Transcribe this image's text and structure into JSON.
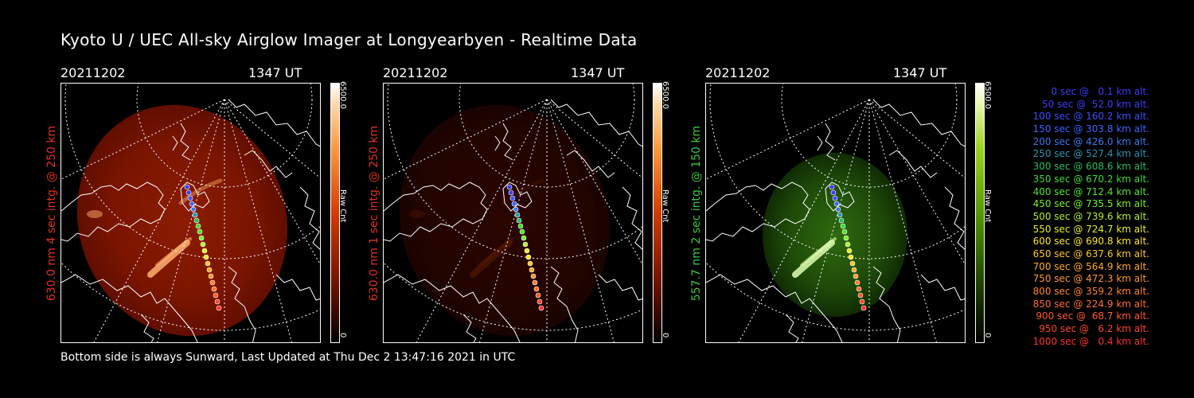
{
  "title": "Kyoto U / UEC All-sky Airglow Imager at Longyearbyen - Realtime Data",
  "footer": "Bottom side is always Sunward, Last Updated at Thu Dec  2 13:47:16 2021 in UTC",
  "panels": [
    {
      "date": "20211202",
      "time": "1347 UT",
      "side_label": "630.0 nm 4 sec intg. @ 250 km",
      "label_color": "#e0321e",
      "cbar_max": "6500.0",
      "cbar_unit": "Raw Cnt",
      "cbar_min": "0",
      "palette": "red",
      "brightness": "high"
    },
    {
      "date": "20211202",
      "time": "1347 UT",
      "side_label": "630.0 nm 1 sec intg. @ 250 km",
      "label_color": "#e0321e",
      "cbar_max": "6500.0",
      "cbar_unit": "Raw Cnt",
      "cbar_min": "0",
      "palette": "red",
      "brightness": "low"
    },
    {
      "date": "20211202",
      "time": "1347 UT",
      "side_label": "557.7 nm 2 sec intg. @ 150 km",
      "label_color": "#3cc83c",
      "cbar_max": "6500.0",
      "cbar_unit": "Raw Cnt",
      "cbar_min": "0",
      "palette": "green",
      "brightness": "medium"
    }
  ],
  "trajectory_legend": [
    {
      "text": "0 sec @   0.1 km alt.",
      "color": "#3c3cff"
    },
    {
      "text": "50 sec @  52.0 km alt.",
      "color": "#3c3cff"
    },
    {
      "text": "100 sec @ 160.2 km alt.",
      "color": "#3c50ff"
    },
    {
      "text": "150 sec @ 303.8 km alt.",
      "color": "#3c64ff"
    },
    {
      "text": "200 sec @ 426.0 km alt.",
      "color": "#3c78f0"
    },
    {
      "text": "250 sec @ 527.4 km alt.",
      "color": "#2896b4"
    },
    {
      "text": "300 sec @ 608.6 km alt.",
      "color": "#28be64"
    },
    {
      "text": "350 sec @ 670.2 km alt.",
      "color": "#3cdc32"
    },
    {
      "text": "400 sec @ 712.4 km alt.",
      "color": "#50e628"
    },
    {
      "text": "450 sec @ 735.5 km alt.",
      "color": "#78f028"
    },
    {
      "text": "500 sec @ 739.6 km alt.",
      "color": "#b4f028"
    },
    {
      "text": "550 sec @ 724.7 km alt.",
      "color": "#e6f028"
    },
    {
      "text": "600 sec @ 690.8 km alt.",
      "color": "#ffe628"
    },
    {
      "text": "650 sec @ 637.6 km alt.",
      "color": "#ffc828"
    },
    {
      "text": "700 sec @ 564.9 km alt.",
      "color": "#ffaa28"
    },
    {
      "text": "750 sec @ 472.3 km alt.",
      "color": "#ff9628"
    },
    {
      "text": "800 sec @ 359.2 km alt.",
      "color": "#ff8228"
    },
    {
      "text": "850 sec @ 224.9 km alt.",
      "color": "#ff6e28"
    },
    {
      "text": "900 sec @  68.7 km alt.",
      "color": "#ff5a28"
    },
    {
      "text": "950 sec @   6.2 km alt.",
      "color": "#ff4628"
    },
    {
      "text": "1000 sec @   0.4 km alt.",
      "color": "#ff3228"
    }
  ]
}
